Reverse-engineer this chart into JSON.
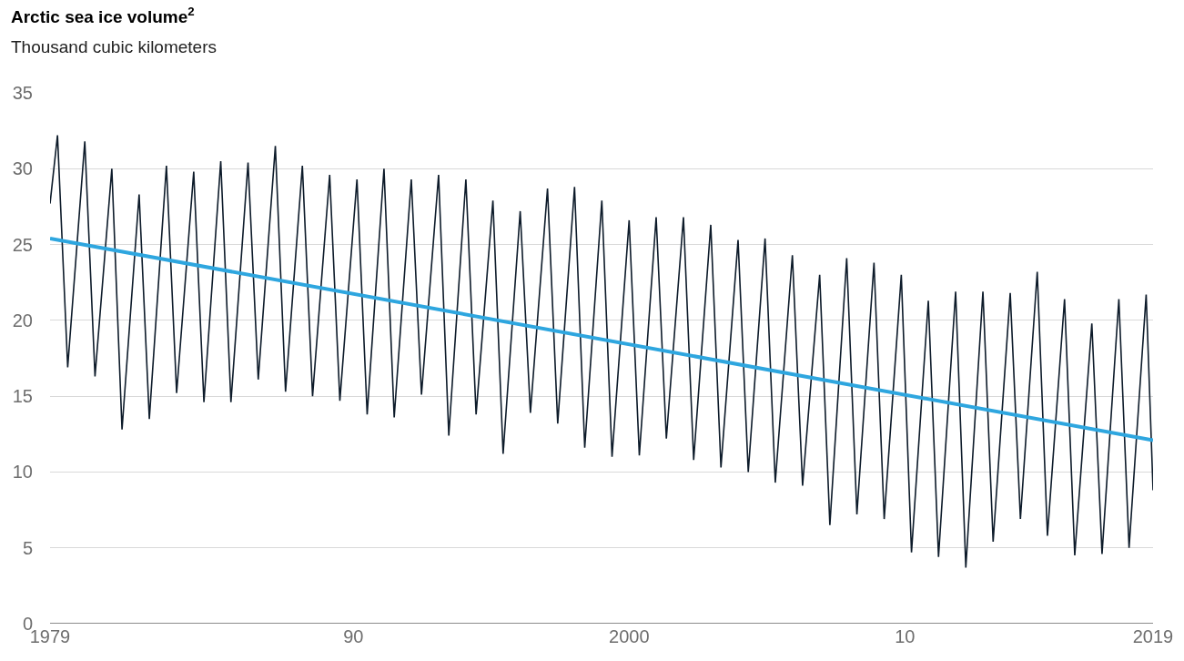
{
  "chart_data": {
    "type": "line",
    "title": "Arctic sea ice volume$^{2}$",
    "subtitle": "Thousand cubic kilometers",
    "xlim": [
      1979,
      2019
    ],
    "xticks": [
      1979,
      {
        "value": 1990,
        "label": "90"
      },
      2000,
      {
        "value": 2010,
        "label": "10"
      },
      2019
    ],
    "ylim": [
      0,
      35
    ],
    "yticks": [
      0,
      5,
      10,
      15,
      20,
      25,
      30,
      35
    ],
    "grid": "y",
    "marker": "none",
    "line_style": "solid",
    "series": [
      {
        "color": "#0d1b2a",
        "x": [
          1979.0,
          1979.27,
          1979.64,
          1980.26,
          1980.63,
          1981.24,
          1981.61,
          1982.23,
          1982.6,
          1983.22,
          1983.59,
          1984.21,
          1984.58,
          1985.19,
          1985.56,
          1986.18,
          1986.55,
          1987.17,
          1987.54,
          1988.15,
          1988.52,
          1989.14,
          1989.51,
          1990.13,
          1990.5,
          1991.11,
          1991.48,
          1992.1,
          1992.47,
          1993.09,
          1993.46,
          1994.08,
          1994.45,
          1995.06,
          1995.43,
          1996.05,
          1996.42,
          1997.04,
          1997.41,
          1998.02,
          1998.39,
          1999.01,
          1999.38,
          2000.0,
          2000.37,
          2000.98,
          2001.35,
          2001.97,
          2002.34,
          2002.96,
          2003.33,
          2003.95,
          2004.32,
          2004.93,
          2005.3,
          2005.92,
          2006.29,
          2006.91,
          2007.28,
          2007.89,
          2008.26,
          2008.88,
          2009.25,
          2009.87,
          2010.24,
          2010.85,
          2011.22,
          2011.84,
          2012.21,
          2012.83,
          2013.2,
          2013.82,
          2014.19,
          2014.8,
          2015.17,
          2015.79,
          2016.16,
          2016.78,
          2017.15,
          2017.76,
          2018.13,
          2018.75,
          2019.0
        ],
        "values": [
          27.7,
          32.2,
          16.9,
          31.8,
          16.3,
          30.0,
          12.8,
          28.3,
          13.5,
          30.2,
          15.2,
          29.8,
          14.6,
          30.5,
          14.6,
          30.4,
          16.1,
          31.5,
          15.3,
          30.2,
          15.0,
          29.6,
          14.7,
          29.3,
          13.8,
          30.0,
          13.6,
          29.3,
          15.1,
          29.6,
          12.4,
          29.3,
          13.8,
          27.9,
          11.2,
          27.2,
          13.9,
          28.7,
          13.2,
          28.8,
          11.6,
          27.9,
          11.0,
          26.6,
          11.1,
          26.8,
          12.2,
          26.8,
          10.8,
          26.3,
          10.3,
          25.3,
          10.0,
          25.4,
          9.3,
          24.3,
          9.1,
          23.0,
          6.5,
          24.1,
          7.2,
          23.8,
          6.9,
          23.0,
          4.7,
          21.3,
          4.4,
          21.9,
          3.7,
          21.9,
          5.4,
          21.8,
          6.9,
          23.2,
          5.8,
          21.4,
          4.5,
          19.8,
          4.6,
          21.4,
          5.0,
          21.7,
          8.8
        ]
      },
      {
        "type": "line",
        "color": "#2ea6df",
        "x": [
          1979,
          2019
        ],
        "values": [
          25.4,
          12.1
        ]
      }
    ]
  }
}
